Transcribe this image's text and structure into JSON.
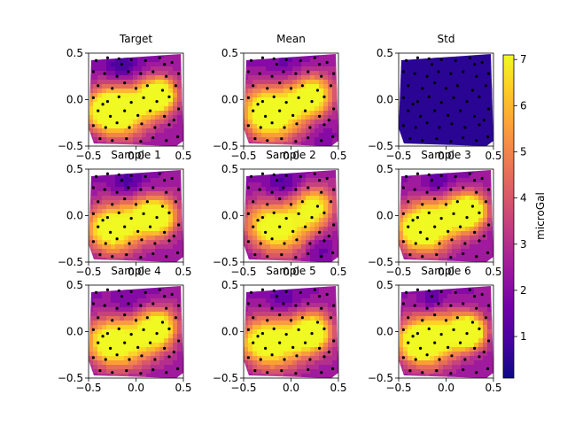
{
  "chart_data": {
    "type": "heatmap",
    "colormap": "plasma",
    "colormap_stops": [
      "#0d0887",
      "#46039f",
      "#7201a8",
      "#9c179e",
      "#bd3786",
      "#d8576b",
      "#ed7953",
      "#fb9f3a",
      "#fdca26",
      "#f0f921"
    ],
    "xlim": [
      -0.5,
      0.5
    ],
    "ylim": [
      -0.5,
      0.5
    ],
    "x_ticks": [
      "−0.5",
      "0.0",
      "0.5"
    ],
    "y_ticks": [
      "−0.5",
      "0.0",
      "0.5"
    ],
    "colorbar": {
      "label": "microGal",
      "range": [
        0.1,
        7.1
      ],
      "ticks": [
        "1",
        "2",
        "3",
        "4",
        "5",
        "6",
        "7"
      ],
      "tick_values": [
        1,
        2,
        3,
        4,
        5,
        6,
        7
      ]
    },
    "panels": [
      {
        "title": "Target",
        "row": 0,
        "col": 0,
        "scale": 1.0,
        "blobs": [
          [
            -0.3,
            -0.12,
            6.4,
            0.16
          ],
          [
            0.25,
            0.05,
            6.5,
            0.13
          ],
          [
            -0.05,
            -0.1,
            4.2,
            0.2
          ],
          [
            -0.15,
            0.35,
            -2.0,
            0.12
          ]
        ]
      },
      {
        "title": "Mean",
        "row": 0,
        "col": 1,
        "scale": 1.0,
        "blobs": [
          [
            -0.28,
            -0.15,
            5.0,
            0.18
          ],
          [
            0.25,
            0.05,
            4.6,
            0.15
          ],
          [
            -0.05,
            -0.1,
            3.5,
            0.22
          ],
          [
            -0.1,
            0.35,
            -1.2,
            0.14
          ],
          [
            0.35,
            -0.35,
            -0.6,
            0.12
          ]
        ]
      },
      {
        "title": "Std",
        "row": 0,
        "col": 2,
        "scale": 0.15,
        "blobs": [
          [
            0.0,
            0.0,
            0.4,
            0.4
          ]
        ]
      },
      {
        "title": "Sample 1",
        "row": 1,
        "col": 0,
        "scale": 1.0,
        "blobs": [
          [
            -0.3,
            -0.15,
            5.2,
            0.17
          ],
          [
            0.25,
            0.0,
            5.0,
            0.14
          ],
          [
            0.0,
            -0.05,
            3.5,
            0.2
          ],
          [
            -0.1,
            0.35,
            -1.8,
            0.12
          ]
        ]
      },
      {
        "title": "Sample 2",
        "row": 1,
        "col": 1,
        "scale": 1.0,
        "blobs": [
          [
            -0.25,
            -0.1,
            4.4,
            0.17
          ],
          [
            0.25,
            0.1,
            4.6,
            0.15
          ],
          [
            0.0,
            -0.15,
            3.2,
            0.2
          ],
          [
            -0.1,
            0.35,
            -1.5,
            0.12
          ],
          [
            0.3,
            -0.35,
            -1.2,
            0.1
          ]
        ]
      },
      {
        "title": "Sample 3",
        "row": 1,
        "col": 2,
        "scale": 1.0,
        "blobs": [
          [
            -0.3,
            -0.15,
            5.8,
            0.16
          ],
          [
            0.25,
            0.05,
            6.6,
            0.13
          ],
          [
            -0.05,
            -0.05,
            4.2,
            0.2
          ],
          [
            -0.1,
            0.35,
            -1.6,
            0.11
          ]
        ]
      },
      {
        "title": "Sample 4",
        "row": 2,
        "col": 0,
        "scale": 1.0,
        "blobs": [
          [
            -0.3,
            -0.12,
            5.2,
            0.17
          ],
          [
            0.25,
            0.05,
            5.0,
            0.14
          ],
          [
            0.0,
            -0.1,
            3.8,
            0.2
          ],
          [
            -0.1,
            0.3,
            -1.0,
            0.13
          ]
        ]
      },
      {
        "title": "Sample 5",
        "row": 2,
        "col": 1,
        "scale": 1.0,
        "blobs": [
          [
            -0.3,
            -0.12,
            5.4,
            0.17
          ],
          [
            0.25,
            0.0,
            5.0,
            0.14
          ],
          [
            0.0,
            -0.1,
            3.7,
            0.2
          ],
          [
            -0.1,
            0.35,
            -1.4,
            0.12
          ]
        ]
      },
      {
        "title": "Sample 6",
        "row": 2,
        "col": 2,
        "scale": 1.0,
        "blobs": [
          [
            -0.3,
            -0.12,
            5.8,
            0.16
          ],
          [
            0.25,
            0.0,
            6.8,
            0.12
          ],
          [
            -0.05,
            -0.05,
            4.3,
            0.2
          ],
          [
            -0.15,
            0.35,
            -1.6,
            0.1
          ]
        ]
      }
    ],
    "stations": [
      [
        -0.42,
        0.42
      ],
      [
        -0.3,
        0.45
      ],
      [
        -0.18,
        0.44
      ],
      [
        -0.05,
        0.43
      ],
      [
        0.1,
        0.42
      ],
      [
        0.25,
        0.45
      ],
      [
        0.38,
        0.4
      ],
      [
        -0.45,
        0.3
      ],
      [
        -0.33,
        0.28
      ],
      [
        -0.2,
        0.25
      ],
      [
        -0.08,
        0.3
      ],
      [
        0.05,
        0.28
      ],
      [
        0.18,
        0.3
      ],
      [
        0.32,
        0.25
      ],
      [
        0.45,
        0.28
      ],
      [
        -0.4,
        0.15
      ],
      [
        -0.25,
        0.12
      ],
      [
        -0.12,
        0.18
      ],
      [
        0.0,
        0.12
      ],
      [
        0.12,
        0.15
      ],
      [
        0.28,
        0.1
      ],
      [
        0.42,
        0.15
      ],
      [
        -0.45,
        0.02
      ],
      [
        -0.3,
        -0.02
      ],
      [
        -0.18,
        0.03
      ],
      [
        -0.05,
        -0.03
      ],
      [
        0.08,
        0.02
      ],
      [
        0.22,
        -0.02
      ],
      [
        0.35,
        0.03
      ],
      [
        -0.4,
        -0.12
      ],
      [
        -0.27,
        -0.18
      ],
      [
        -0.12,
        -0.12
      ],
      [
        0.02,
        -0.17
      ],
      [
        0.15,
        -0.12
      ],
      [
        0.3,
        -0.18
      ],
      [
        0.45,
        -0.1
      ],
      [
        -0.45,
        -0.28
      ],
      [
        -0.32,
        -0.3
      ],
      [
        -0.2,
        -0.25
      ],
      [
        -0.07,
        -0.3
      ],
      [
        0.06,
        -0.26
      ],
      [
        0.2,
        -0.3
      ],
      [
        0.35,
        -0.27
      ],
      [
        -0.38,
        -0.42
      ],
      [
        -0.25,
        -0.44
      ],
      [
        -0.1,
        -0.42
      ],
      [
        0.05,
        -0.45
      ],
      [
        0.18,
        -0.41
      ],
      [
        0.32,
        -0.44
      ],
      [
        0.44,
        -0.4
      ],
      [
        -0.15,
        0.38
      ],
      [
        0.3,
        0.38
      ],
      [
        -0.35,
        -0.05
      ],
      [
        0.4,
        -0.22
      ]
    ]
  }
}
